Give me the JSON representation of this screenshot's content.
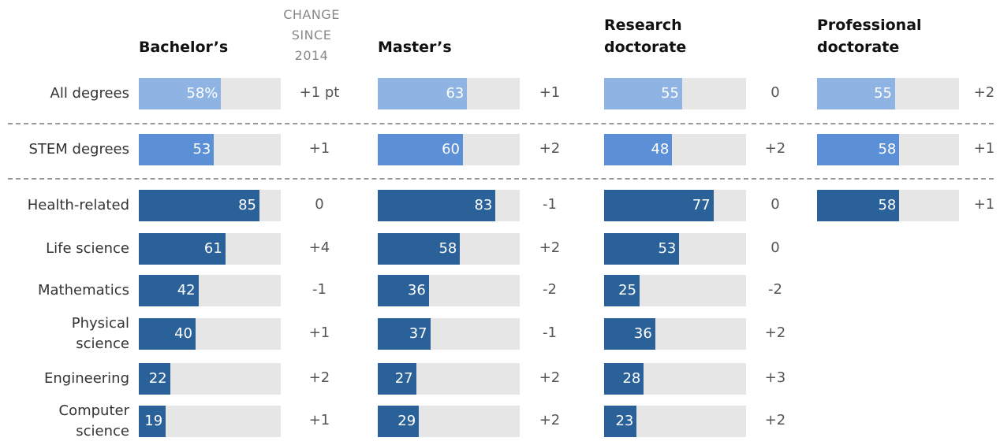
{
  "chart_data": {
    "type": "bar-table",
    "change_header": "CHANGE SINCE 2014",
    "categories": [
      "All degrees",
      "STEM degrees",
      "Health-related",
      "Life science",
      "Mathematics",
      "Physical science",
      "Engineering",
      "Computer science"
    ],
    "row_colors": [
      "#8fb4e3",
      "#5b8fd6",
      "#2b6199",
      "#2b6199",
      "#2b6199",
      "#2b6199",
      "#2b6199",
      "#2b6199"
    ],
    "track_color": "#e6e6e6",
    "xlim": [
      0,
      100
    ],
    "series": [
      {
        "name": "Bachelor’s",
        "values": [
          58,
          53,
          85,
          61,
          42,
          40,
          22,
          19
        ],
        "value_labels": [
          "58%",
          "53",
          "85",
          "61",
          "42",
          "40",
          "22",
          "19"
        ],
        "changes": [
          1,
          1,
          0,
          4,
          -1,
          1,
          2,
          1
        ],
        "change_labels": [
          "+1 pt",
          "+1",
          "0",
          "+4",
          "-1",
          "+1",
          "+2",
          "+1"
        ]
      },
      {
        "name": "Master’s",
        "values": [
          63,
          60,
          83,
          58,
          36,
          37,
          27,
          29
        ],
        "value_labels": [
          "63",
          "60",
          "83",
          "58",
          "36",
          "37",
          "27",
          "29"
        ],
        "changes": [
          1,
          2,
          -1,
          2,
          -2,
          -1,
          2,
          2
        ],
        "change_labels": [
          "+1",
          "+2",
          "-1",
          "+2",
          "-2",
          "-1",
          "+2",
          "+2"
        ]
      },
      {
        "name": "Research doctorate",
        "values": [
          55,
          48,
          77,
          53,
          25,
          36,
          28,
          23
        ],
        "value_labels": [
          "55",
          "48",
          "77",
          "53",
          "25",
          "36",
          "28",
          "23"
        ],
        "changes": [
          0,
          2,
          0,
          0,
          -2,
          2,
          3,
          2
        ],
        "change_labels": [
          "0",
          "+2",
          "0",
          "0",
          "-2",
          "+2",
          "+3",
          "+2"
        ]
      },
      {
        "name": "Professional doctorate",
        "values": [
          55,
          58,
          58,
          null,
          null,
          null,
          null,
          null
        ],
        "value_labels": [
          "55",
          "58",
          "58",
          null,
          null,
          null,
          null,
          null
        ],
        "changes": [
          2,
          1,
          1,
          null,
          null,
          null,
          null,
          null
        ],
        "change_labels": [
          "+2",
          "+1",
          "+1",
          null,
          null,
          null,
          null,
          null
        ]
      }
    ]
  }
}
